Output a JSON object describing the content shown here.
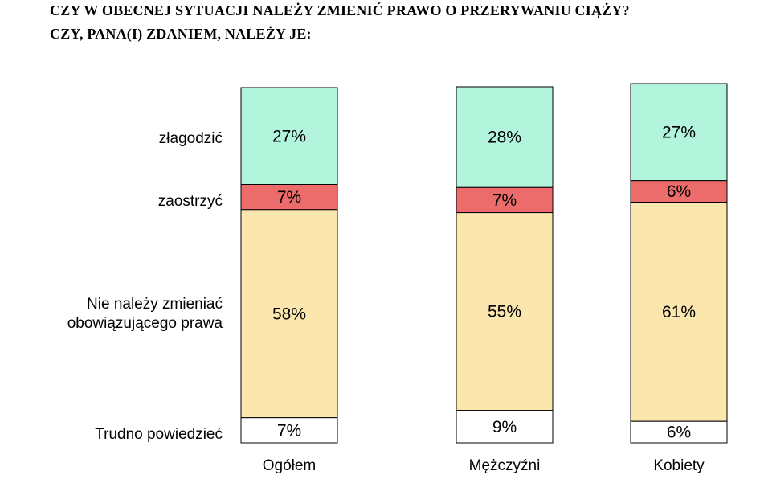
{
  "chart_data": {
    "type": "bar",
    "stacked": true,
    "normalized_percent": true,
    "title": "CZY W OBECNEJ SYTUACJI NALEŻY ZMIENIĆ PRAWO O PRZERYWANIU CIĄŻY?",
    "subtitle": "CZY, PANA(I) ZDANIEM, NALEŻY JE:",
    "categories": [
      "Ogółem",
      "Mężczyźni",
      "Kobiety"
    ],
    "stack_order": "top-to-bottom",
    "series": [
      {
        "name": "złagodzić",
        "color": "#b3f5dc",
        "values": [
          27,
          28,
          27
        ],
        "labels": [
          "27%",
          "28%",
          "27%"
        ]
      },
      {
        "name": "zaostrzyć",
        "color": "#ec6b6b",
        "values": [
          7,
          7,
          6
        ],
        "labels": [
          "7%",
          "7%",
          "6%"
        ]
      },
      {
        "name": "Nie należy zmieniać obowiązującego prawa",
        "name_lines": [
          "Nie należy zmieniać",
          "obowiązującego prawa"
        ],
        "color": "#fbe6ad",
        "values": [
          58,
          55,
          61
        ],
        "labels": [
          "58%",
          "55%",
          "61%"
        ]
      },
      {
        "name": "Trudno powiedzieć",
        "color": "#ffffff",
        "values": [
          7,
          9,
          6
        ],
        "labels": [
          "7%",
          "9%",
          "6%"
        ]
      }
    ],
    "legend": "left-side labels",
    "grid": false
  }
}
